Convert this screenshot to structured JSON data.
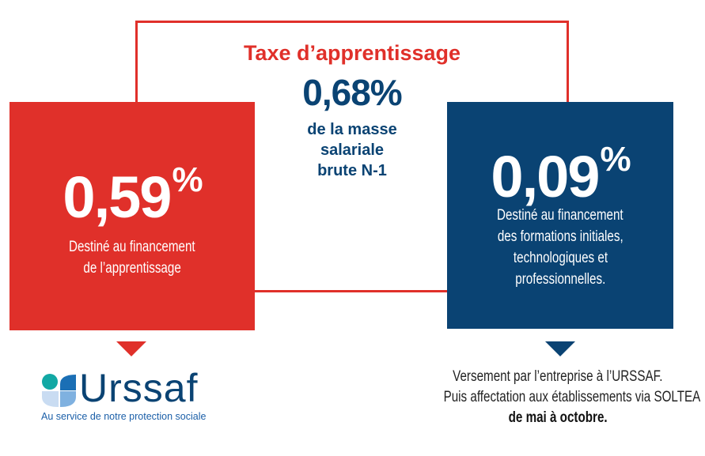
{
  "header": {
    "title": "Taxe d’apprentissage",
    "total_rate": "0,68%",
    "total_desc": [
      "de la masse",
      "salariale",
      "brute N-1"
    ]
  },
  "left_box": {
    "rate": "0,59",
    "percent_sign": "%",
    "desc": [
      "Destiné au financement",
      "de l’apprentissage"
    ],
    "color": "#e0302a"
  },
  "right_box": {
    "rate": "0,09",
    "percent_sign": "%",
    "desc": [
      "Destiné au financement",
      "des formations initiales,",
      "technologiques et",
      "professionnelles."
    ],
    "color": "#0a4373"
  },
  "logo": {
    "name": "Urssaf",
    "tagline": "Au service de notre protection sociale"
  },
  "note": [
    "Versement par l’entreprise à l’URSSAF.",
    "Puis affectation aux établissements via SOLTEA",
    "de mai à octobre."
  ]
}
